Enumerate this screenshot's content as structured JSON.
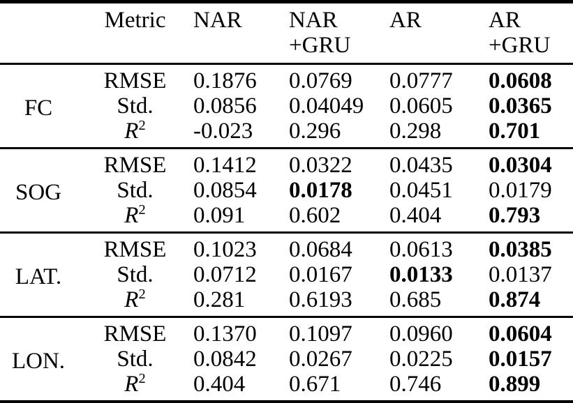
{
  "colors": {
    "text": "#000000",
    "background": "#ffffff",
    "rule": "#000000"
  },
  "table": {
    "header": {
      "metric_label": "Metric",
      "columns": [
        {
          "line1": "NAR",
          "line2": ""
        },
        {
          "line1": "NAR",
          "line2": "+GRU"
        },
        {
          "line1": "AR",
          "line2": ""
        },
        {
          "line1": "AR",
          "line2": "+GRU"
        }
      ]
    },
    "groups": [
      {
        "label": "FC",
        "rows": [
          {
            "metric": "RMSE",
            "sup": "",
            "italic": false,
            "values": [
              "0.1876",
              "0.0769",
              "0.0777",
              "0.0608"
            ],
            "bold": [
              false,
              false,
              false,
              true
            ]
          },
          {
            "metric": "Std.",
            "sup": "",
            "italic": false,
            "values": [
              "0.0856",
              "0.04049",
              "0.0605",
              "0.0365"
            ],
            "bold": [
              false,
              false,
              false,
              true
            ]
          },
          {
            "metric": "R",
            "sup": "2",
            "italic": true,
            "values": [
              "-0.023",
              "0.296",
              "0.298",
              "0.701"
            ],
            "bold": [
              false,
              false,
              false,
              true
            ]
          }
        ]
      },
      {
        "label": "SOG",
        "rows": [
          {
            "metric": "RMSE",
            "sup": "",
            "italic": false,
            "values": [
              "0.1412",
              "0.0322",
              "0.0435",
              "0.0304"
            ],
            "bold": [
              false,
              false,
              false,
              true
            ]
          },
          {
            "metric": "Std.",
            "sup": "",
            "italic": false,
            "values": [
              "0.0854",
              "0.0178",
              "0.0451",
              "0.0179"
            ],
            "bold": [
              false,
              true,
              false,
              false
            ]
          },
          {
            "metric": "R",
            "sup": "2",
            "italic": true,
            "values": [
              "0.091",
              "0.602",
              "0.404",
              "0.793"
            ],
            "bold": [
              false,
              false,
              false,
              true
            ]
          }
        ]
      },
      {
        "label": "LAT.",
        "rows": [
          {
            "metric": "RMSE",
            "sup": "",
            "italic": false,
            "values": [
              "0.1023",
              "0.0684",
              "0.0613",
              "0.0385"
            ],
            "bold": [
              false,
              false,
              false,
              true
            ]
          },
          {
            "metric": "Std.",
            "sup": "",
            "italic": false,
            "values": [
              "0.0712",
              "0.0167",
              "0.0133",
              "0.0137"
            ],
            "bold": [
              false,
              false,
              true,
              false
            ]
          },
          {
            "metric": "R",
            "sup": "2",
            "italic": true,
            "values": [
              "0.281",
              "0.6193",
              "0.685",
              "0.874"
            ],
            "bold": [
              false,
              false,
              false,
              true
            ]
          }
        ]
      },
      {
        "label": "LON.",
        "rows": [
          {
            "metric": "RMSE",
            "sup": "",
            "italic": false,
            "values": [
              "0.1370",
              "0.1097",
              "0.0960",
              "0.0604"
            ],
            "bold": [
              false,
              false,
              false,
              true
            ]
          },
          {
            "metric": "Std.",
            "sup": "",
            "italic": false,
            "values": [
              "0.0842",
              "0.0267",
              "0.0225",
              "0.0157"
            ],
            "bold": [
              false,
              false,
              false,
              true
            ]
          },
          {
            "metric": "R",
            "sup": "2",
            "italic": true,
            "values": [
              "0.404",
              "0.671",
              "0.746",
              "0.899"
            ],
            "bold": [
              false,
              false,
              false,
              true
            ]
          }
        ]
      }
    ]
  }
}
